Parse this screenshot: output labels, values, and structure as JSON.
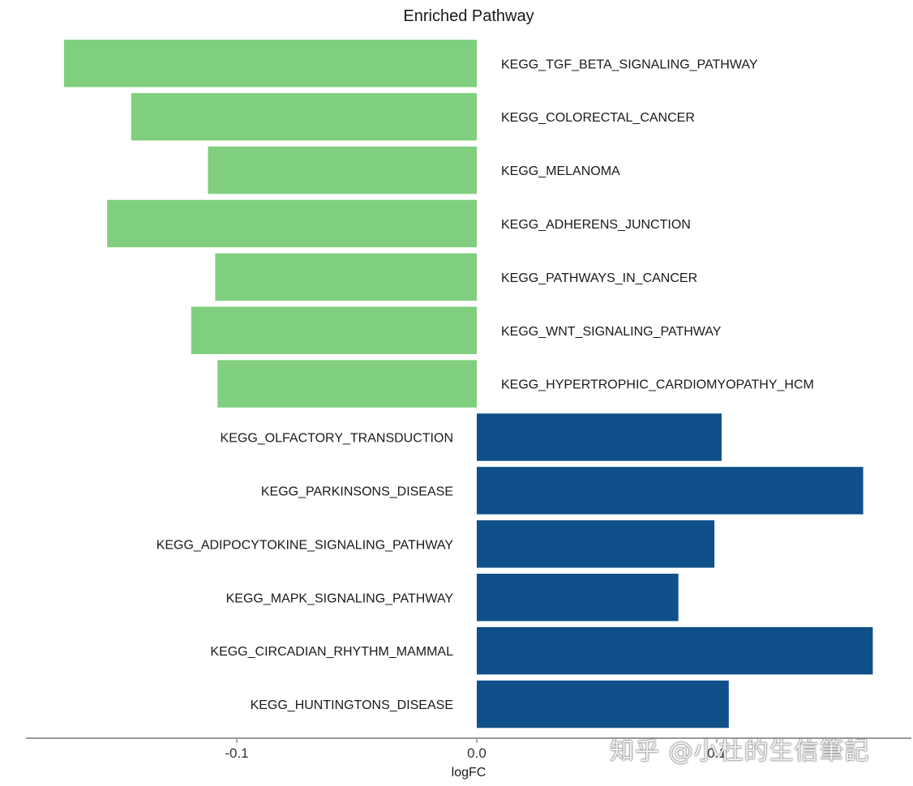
{
  "chart_data": {
    "type": "bar",
    "orientation": "horizontal",
    "title": "Enriched Pathway",
    "xlabel": "logFC",
    "ylabel": "",
    "xlim": [
      -0.2,
      0.2
    ],
    "xticks": [
      -0.1,
      0.0,
      0.1
    ],
    "xtick_labels": [
      "-0.1",
      "0.0",
      "0.1"
    ],
    "grid": false,
    "legend": "none",
    "colors": {
      "negative": "#7fcf7f",
      "positive": "#0f4f8a",
      "axis": "#999999"
    },
    "categories": [
      "KEGG_TGF_BETA_SIGNALING_PATHWAY",
      "KEGG_COLORECTAL_CANCER",
      "KEGG_MELANOMA",
      "KEGG_ADHERENS_JUNCTION",
      "KEGG_PATHWAYS_IN_CANCER",
      "KEGG_WNT_SIGNALING_PATHWAY",
      "KEGG_HYPERTROPHIC_CARDIOMYOPATHY_HCM",
      "KEGG_OLFACTORY_TRANSDUCTION",
      "KEGG_PARKINSONS_DISEASE",
      "KEGG_ADIPOCYTOKINE_SIGNALING_PATHWAY",
      "KEGG_MAPK_SIGNALING_PATHWAY",
      "KEGG_CIRCADIAN_RHYTHM_MAMMAL",
      "KEGG_HUNTINGTONS_DISEASE"
    ],
    "values": [
      -0.172,
      -0.144,
      -0.112,
      -0.154,
      -0.109,
      -0.119,
      -0.108,
      0.102,
      0.161,
      0.099,
      0.084,
      0.165,
      0.105
    ]
  },
  "watermark": "知乎 @小杜的生信筆記"
}
